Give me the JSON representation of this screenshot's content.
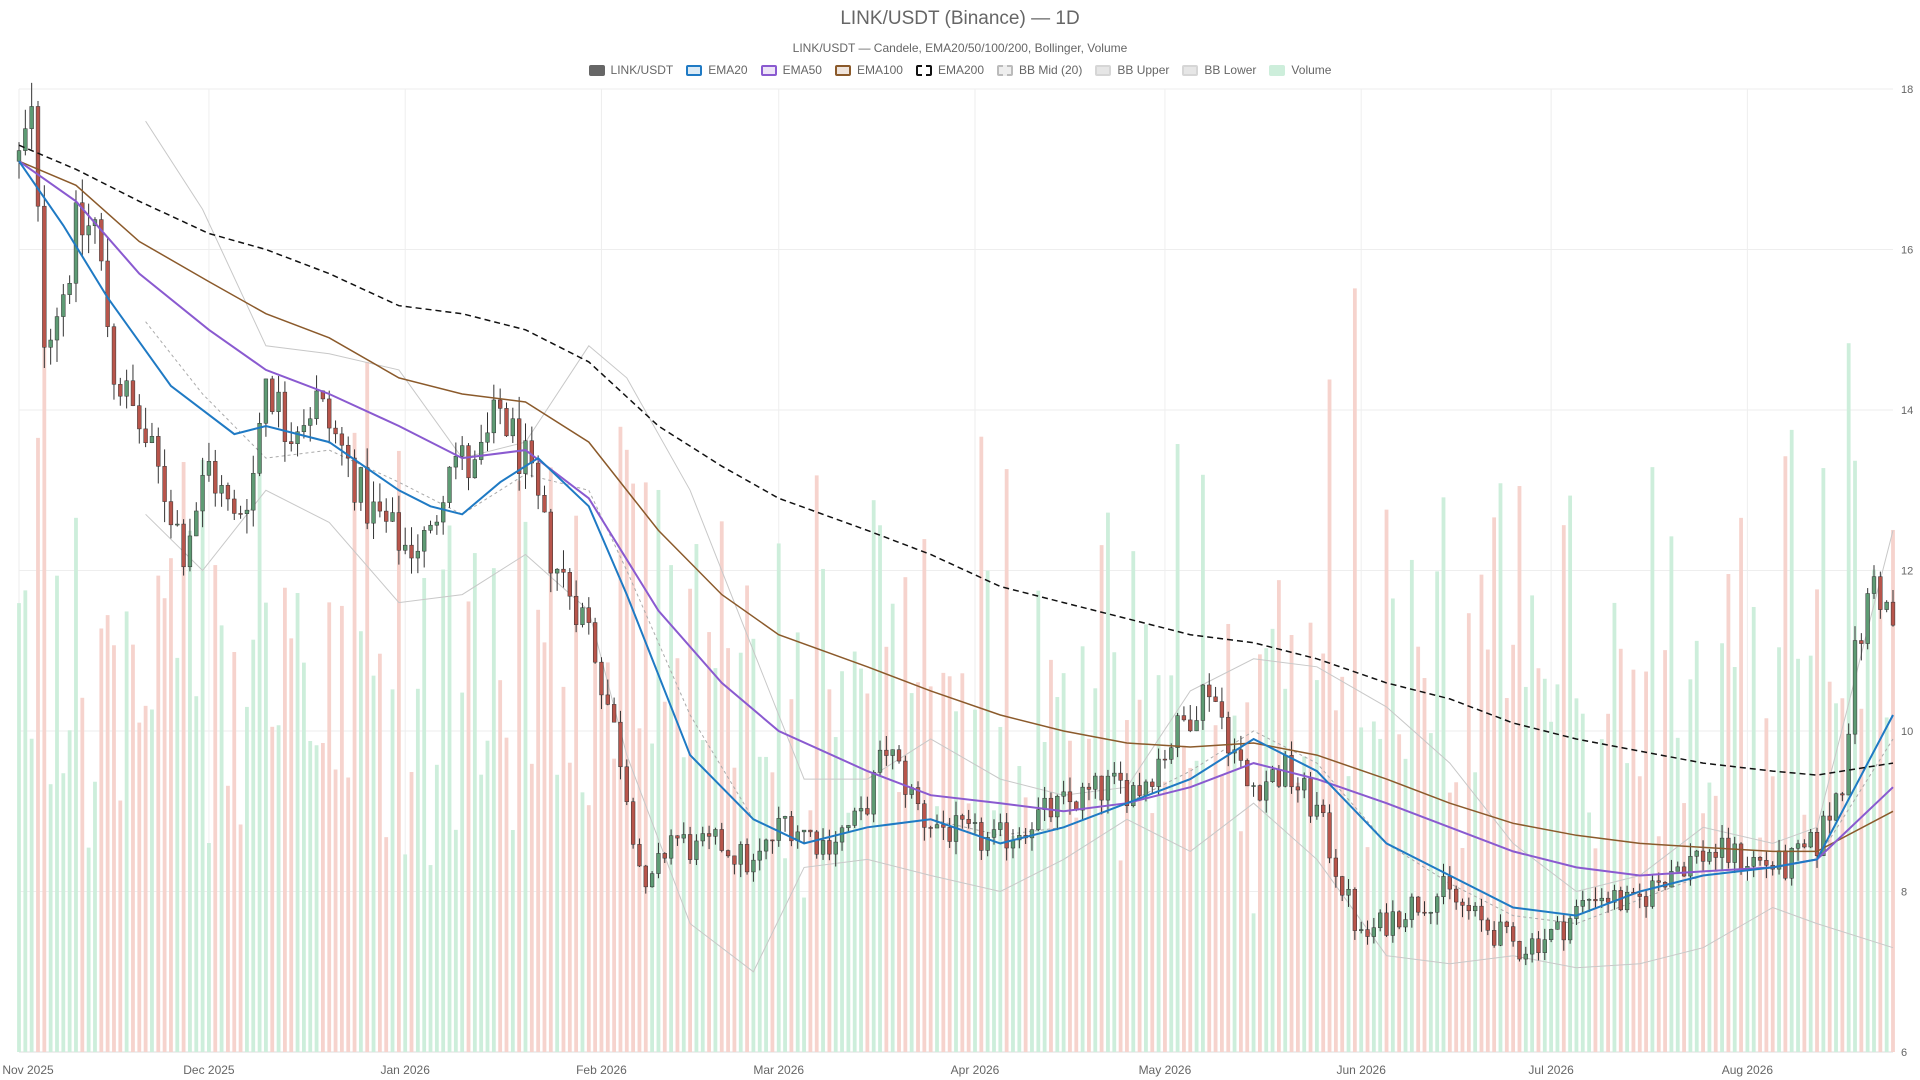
{
  "chart_data": {
    "type": "candlestick",
    "title": "LINK/USDT (Binance) — 1D",
    "subtitle": "LINK/USDT — Candele, EMA20/50/100/200, Bollinger, Volume",
    "legend": [
      {
        "name": "LINK/USDT",
        "fill": "#666666",
        "stroke": "#666666",
        "dash": false
      },
      {
        "name": "EMA20",
        "fill": "#dbeaf5",
        "stroke": "#1f7ac4",
        "dash": false
      },
      {
        "name": "EMA50",
        "fill": "#ede4f7",
        "stroke": "#8a5ad0",
        "dash": false
      },
      {
        "name": "EMA100",
        "fill": "#efe4dc",
        "stroke": "#8b5a2b",
        "dash": false
      },
      {
        "name": "EMA200",
        "fill": "#ffffff",
        "stroke": "#111111",
        "dash": true
      },
      {
        "name": "BB Mid (20)",
        "fill": "#eeeeee",
        "stroke": "#bbbbbb",
        "dash": true
      },
      {
        "name": "BB Upper",
        "fill": "#e6e6e6",
        "stroke": "#d6d6d6",
        "dash": false
      },
      {
        "name": "BB Lower",
        "fill": "#e6e6e6",
        "stroke": "#d6d6d6",
        "dash": false
      },
      {
        "name": "Volume",
        "fill": "#cdeedb",
        "stroke": "#cdeedb",
        "dash": false
      }
    ],
    "x_ticks": [
      "Nov 2025",
      "Dec 2025",
      "Jan 2026",
      "Feb 2026",
      "Mar 2026",
      "Apr 2026",
      "May 2026",
      "Jun 2026",
      "Jul 2026",
      "Aug 2026"
    ],
    "x_range": [
      "2025-11-01",
      "2026-08-24"
    ],
    "y_ticks": [
      6,
      8,
      10,
      12,
      14,
      16,
      18
    ],
    "ylim": [
      6,
      18
    ],
    "y_axis_position": "right",
    "grid": true,
    "legend_position": "top",
    "colors": {
      "up": "#5e9b74",
      "down": "#b8554b",
      "up_volume": "#cdeedb",
      "down_volume": "#f6d3cd",
      "ema20": "#1f7ac4",
      "ema50": "#8a5ad0",
      "ema100": "#8b5a2b",
      "ema200": "#111111",
      "bb_mid": "#aaaaaa",
      "bb_band": "#c8c8c8",
      "grid": "#eeeeee"
    },
    "series_anchors": {
      "price_close": [
        [
          "2025-11-01",
          17.1
        ],
        [
          "2025-11-03",
          17.6
        ],
        [
          "2025-11-05",
          15.0
        ],
        [
          "2025-11-08",
          15.5
        ],
        [
          "2025-11-10",
          16.2
        ],
        [
          "2025-11-13",
          16.3
        ],
        [
          "2025-11-16",
          14.5
        ],
        [
          "2025-11-20",
          13.8
        ],
        [
          "2025-11-24",
          13.0
        ],
        [
          "2025-11-27",
          12.3
        ],
        [
          "2025-12-01",
          13.3
        ],
        [
          "2025-12-05",
          12.6
        ],
        [
          "2025-12-08",
          13.2
        ],
        [
          "2025-12-10",
          14.5
        ],
        [
          "2025-12-13",
          13.8
        ],
        [
          "2025-12-18",
          14.1
        ],
        [
          "2025-12-22",
          13.5
        ],
        [
          "2025-12-26",
          12.8
        ],
        [
          "2026-01-01",
          12.3
        ],
        [
          "2026-01-05",
          12.4
        ],
        [
          "2026-01-08",
          13.5
        ],
        [
          "2026-01-12",
          13.2
        ],
        [
          "2026-01-16",
          14.0
        ],
        [
          "2026-01-20",
          13.3
        ],
        [
          "2026-01-24",
          12.2
        ],
        [
          "2026-01-30",
          11.3
        ],
        [
          "2026-02-04",
          9.7
        ],
        [
          "2026-02-08",
          7.9
        ],
        [
          "2026-02-12",
          8.7
        ],
        [
          "2026-02-16",
          8.5
        ],
        [
          "2026-02-20",
          8.6
        ],
        [
          "2026-02-25",
          8.3
        ],
        [
          "2026-03-02",
          8.9
        ],
        [
          "2026-03-08",
          8.6
        ],
        [
          "2026-03-14",
          8.9
        ],
        [
          "2026-03-18",
          9.8
        ],
        [
          "2026-03-24",
          8.9
        ],
        [
          "2026-03-30",
          8.7
        ],
        [
          "2026-04-04",
          8.6
        ],
        [
          "2026-04-10",
          8.9
        ],
        [
          "2026-04-16",
          9.1
        ],
        [
          "2026-04-22",
          9.3
        ],
        [
          "2026-04-27",
          9.3
        ],
        [
          "2026-05-03",
          10.0
        ],
        [
          "2026-05-08",
          10.6
        ],
        [
          "2026-05-14",
          9.3
        ],
        [
          "2026-05-20",
          9.5
        ],
        [
          "2026-05-25",
          9.0
        ],
        [
          "2026-06-01",
          7.4
        ],
        [
          "2026-06-08",
          7.8
        ],
        [
          "2026-06-14",
          8.0
        ],
        [
          "2026-06-20",
          7.6
        ],
        [
          "2026-06-26",
          7.3
        ],
        [
          "2026-07-02",
          7.5
        ],
        [
          "2026-07-08",
          8.0
        ],
        [
          "2026-07-14",
          7.8
        ],
        [
          "2026-07-20",
          8.3
        ],
        [
          "2026-07-26",
          8.5
        ],
        [
          "2026-08-01",
          8.4
        ],
        [
          "2026-08-07",
          8.3
        ],
        [
          "2026-08-12",
          8.6
        ],
        [
          "2026-08-16",
          9.4
        ],
        [
          "2026-08-18",
          10.9
        ],
        [
          "2026-08-21",
          11.9
        ],
        [
          "2026-08-24",
          11.3
        ]
      ],
      "ema20": [
        [
          "2025-11-01",
          17.1
        ],
        [
          "2025-11-08",
          16.3
        ],
        [
          "2025-11-15",
          15.4
        ],
        [
          "2025-11-25",
          14.3
        ],
        [
          "2025-12-05",
          13.7
        ],
        [
          "2025-12-10",
          13.8
        ],
        [
          "2025-12-20",
          13.6
        ],
        [
          "2025-12-31",
          13.0
        ],
        [
          "2026-01-05",
          12.8
        ],
        [
          "2026-01-10",
          12.7
        ],
        [
          "2026-01-16",
          13.1
        ],
        [
          "2026-01-22",
          13.4
        ],
        [
          "2026-01-30",
          12.8
        ],
        [
          "2026-02-05",
          11.7
        ],
        [
          "2026-02-15",
          9.7
        ],
        [
          "2026-02-25",
          8.9
        ],
        [
          "2026-03-05",
          8.6
        ],
        [
          "2026-03-15",
          8.8
        ],
        [
          "2026-03-25",
          8.9
        ],
        [
          "2026-04-05",
          8.6
        ],
        [
          "2026-04-15",
          8.8
        ],
        [
          "2026-04-25",
          9.1
        ],
        [
          "2026-05-05",
          9.4
        ],
        [
          "2026-05-15",
          9.9
        ],
        [
          "2026-05-25",
          9.5
        ],
        [
          "2026-06-05",
          8.6
        ],
        [
          "2026-06-15",
          8.2
        ],
        [
          "2026-06-25",
          7.8
        ],
        [
          "2026-07-05",
          7.7
        ],
        [
          "2026-07-15",
          8.0
        ],
        [
          "2026-07-25",
          8.2
        ],
        [
          "2026-08-05",
          8.3
        ],
        [
          "2026-08-12",
          8.4
        ],
        [
          "2026-08-24",
          10.2
        ]
      ],
      "ema50": [
        [
          "2025-11-01",
          17.1
        ],
        [
          "2025-11-10",
          16.6
        ],
        [
          "2025-11-20",
          15.7
        ],
        [
          "2025-12-01",
          15.0
        ],
        [
          "2025-12-10",
          14.5
        ],
        [
          "2025-12-20",
          14.2
        ],
        [
          "2025-12-31",
          13.8
        ],
        [
          "2026-01-10",
          13.4
        ],
        [
          "2026-01-20",
          13.5
        ],
        [
          "2026-01-30",
          12.9
        ],
        [
          "2026-02-10",
          11.5
        ],
        [
          "2026-02-20",
          10.6
        ],
        [
          "2026-03-01",
          10.0
        ],
        [
          "2026-03-15",
          9.5
        ],
        [
          "2026-03-25",
          9.2
        ],
        [
          "2026-04-05",
          9.1
        ],
        [
          "2026-04-15",
          9.0
        ],
        [
          "2026-04-25",
          9.1
        ],
        [
          "2026-05-05",
          9.3
        ],
        [
          "2026-05-15",
          9.6
        ],
        [
          "2026-05-25",
          9.4
        ],
        [
          "2026-06-05",
          9.1
        ],
        [
          "2026-06-15",
          8.8
        ],
        [
          "2026-06-25",
          8.5
        ],
        [
          "2026-07-05",
          8.3
        ],
        [
          "2026-07-15",
          8.2
        ],
        [
          "2026-07-25",
          8.25
        ],
        [
          "2026-08-05",
          8.3
        ],
        [
          "2026-08-12",
          8.4
        ],
        [
          "2026-08-24",
          9.3
        ]
      ],
      "ema100": [
        [
          "2025-11-01",
          17.1
        ],
        [
          "2025-11-10",
          16.8
        ],
        [
          "2025-11-20",
          16.1
        ],
        [
          "2025-12-01",
          15.6
        ],
        [
          "2025-12-10",
          15.2
        ],
        [
          "2025-12-20",
          14.9
        ],
        [
          "2025-12-31",
          14.4
        ],
        [
          "2026-01-10",
          14.2
        ],
        [
          "2026-01-20",
          14.1
        ],
        [
          "2026-01-30",
          13.6
        ],
        [
          "2026-02-10",
          12.5
        ],
        [
          "2026-02-20",
          11.7
        ],
        [
          "2026-03-01",
          11.2
        ],
        [
          "2026-03-15",
          10.8
        ],
        [
          "2026-03-25",
          10.5
        ],
        [
          "2026-04-05",
          10.2
        ],
        [
          "2026-04-15",
          10.0
        ],
        [
          "2026-04-25",
          9.85
        ],
        [
          "2026-05-05",
          9.8
        ],
        [
          "2026-05-15",
          9.85
        ],
        [
          "2026-05-25",
          9.7
        ],
        [
          "2026-06-05",
          9.4
        ],
        [
          "2026-06-15",
          9.1
        ],
        [
          "2026-06-25",
          8.85
        ],
        [
          "2026-07-05",
          8.7
        ],
        [
          "2026-07-15",
          8.6
        ],
        [
          "2026-07-25",
          8.55
        ],
        [
          "2026-08-05",
          8.5
        ],
        [
          "2026-08-12",
          8.5
        ],
        [
          "2026-08-24",
          9.0
        ]
      ],
      "ema200": [
        [
          "2025-11-01",
          17.3
        ],
        [
          "2025-11-10",
          17.0
        ],
        [
          "2025-11-20",
          16.6
        ],
        [
          "2025-12-01",
          16.2
        ],
        [
          "2025-12-10",
          16.0
        ],
        [
          "2025-12-20",
          15.7
        ],
        [
          "2025-12-31",
          15.3
        ],
        [
          "2026-01-10",
          15.2
        ],
        [
          "2026-01-20",
          15.0
        ],
        [
          "2026-01-30",
          14.6
        ],
        [
          "2026-02-10",
          13.8
        ],
        [
          "2026-02-20",
          13.3
        ],
        [
          "2026-03-01",
          12.9
        ],
        [
          "2026-03-15",
          12.5
        ],
        [
          "2026-03-25",
          12.2
        ],
        [
          "2026-04-05",
          11.8
        ],
        [
          "2026-04-15",
          11.6
        ],
        [
          "2026-04-25",
          11.4
        ],
        [
          "2026-05-05",
          11.2
        ],
        [
          "2026-05-15",
          11.1
        ],
        [
          "2026-05-25",
          10.9
        ],
        [
          "2026-06-05",
          10.6
        ],
        [
          "2026-06-15",
          10.4
        ],
        [
          "2026-06-25",
          10.1
        ],
        [
          "2026-07-05",
          9.9
        ],
        [
          "2026-07-15",
          9.75
        ],
        [
          "2026-07-25",
          9.6
        ],
        [
          "2026-08-05",
          9.5
        ],
        [
          "2026-08-12",
          9.45
        ],
        [
          "2026-08-24",
          9.6
        ]
      ],
      "bb_upper": [
        [
          "2025-11-21",
          17.6
        ],
        [
          "2025-11-30",
          16.5
        ],
        [
          "2025-12-10",
          14.8
        ],
        [
          "2025-12-20",
          14.7
        ],
        [
          "2025-12-31",
          14.5
        ],
        [
          "2026-01-10",
          13.4
        ],
        [
          "2026-01-20",
          13.6
        ],
        [
          "2026-01-30",
          14.8
        ],
        [
          "2026-02-05",
          14.4
        ],
        [
          "2026-02-15",
          13.0
        ],
        [
          "2026-02-25",
          11.0
        ],
        [
          "2026-03-05",
          9.4
        ],
        [
          "2026-03-15",
          9.4
        ],
        [
          "2026-03-25",
          9.9
        ],
        [
          "2026-04-05",
          9.4
        ],
        [
          "2026-04-15",
          9.2
        ],
        [
          "2026-04-25",
          9.3
        ],
        [
          "2026-05-05",
          10.5
        ],
        [
          "2026-05-15",
          10.9
        ],
        [
          "2026-05-25",
          10.8
        ],
        [
          "2026-06-05",
          10.3
        ],
        [
          "2026-06-15",
          9.6
        ],
        [
          "2026-06-25",
          8.6
        ],
        [
          "2026-07-05",
          8.0
        ],
        [
          "2026-07-15",
          8.2
        ],
        [
          "2026-07-25",
          8.8
        ],
        [
          "2026-08-05",
          8.6
        ],
        [
          "2026-08-12",
          8.8
        ],
        [
          "2026-08-24",
          12.5
        ]
      ],
      "bb_mid": [
        [
          "2025-11-21",
          15.1
        ],
        [
          "2025-11-30",
          14.2
        ],
        [
          "2025-12-10",
          13.4
        ],
        [
          "2025-12-20",
          13.5
        ],
        [
          "2025-12-31",
          13.1
        ],
        [
          "2026-01-10",
          12.7
        ],
        [
          "2026-01-20",
          13.2
        ],
        [
          "2026-01-30",
          13.0
        ],
        [
          "2026-02-05",
          12.0
        ],
        [
          "2026-02-15",
          10.2
        ],
        [
          "2026-02-25",
          8.9
        ],
        [
          "2026-03-05",
          8.6
        ],
        [
          "2026-03-15",
          8.8
        ],
        [
          "2026-03-25",
          8.9
        ],
        [
          "2026-04-05",
          8.7
        ],
        [
          "2026-04-15",
          8.8
        ],
        [
          "2026-04-25",
          9.1
        ],
        [
          "2026-05-05",
          9.5
        ],
        [
          "2026-05-15",
          10.0
        ],
        [
          "2026-05-25",
          9.6
        ],
        [
          "2026-06-05",
          8.6
        ],
        [
          "2026-06-15",
          8.1
        ],
        [
          "2026-06-25",
          7.7
        ],
        [
          "2026-07-05",
          7.6
        ],
        [
          "2026-07-15",
          7.9
        ],
        [
          "2026-07-25",
          8.2
        ],
        [
          "2026-08-05",
          8.3
        ],
        [
          "2026-08-12",
          8.4
        ],
        [
          "2026-08-24",
          9.9
        ]
      ],
      "bb_lower": [
        [
          "2025-11-21",
          12.7
        ],
        [
          "2025-11-30",
          12.0
        ],
        [
          "2025-12-10",
          13.0
        ],
        [
          "2025-12-20",
          12.6
        ],
        [
          "2025-12-31",
          11.6
        ],
        [
          "2026-01-10",
          11.7
        ],
        [
          "2026-01-20",
          12.2
        ],
        [
          "2026-01-30",
          11.5
        ],
        [
          "2026-02-05",
          9.7
        ],
        [
          "2026-02-15",
          7.6
        ],
        [
          "2026-02-25",
          7.0
        ],
        [
          "2026-03-05",
          8.3
        ],
        [
          "2026-03-15",
          8.4
        ],
        [
          "2026-03-25",
          8.2
        ],
        [
          "2026-04-05",
          8.0
        ],
        [
          "2026-04-15",
          8.4
        ],
        [
          "2026-04-25",
          8.9
        ],
        [
          "2026-05-05",
          8.5
        ],
        [
          "2026-05-15",
          9.1
        ],
        [
          "2026-05-25",
          8.4
        ],
        [
          "2026-06-05",
          7.2
        ],
        [
          "2026-06-15",
          7.1
        ],
        [
          "2026-06-25",
          7.2
        ],
        [
          "2026-07-05",
          7.05
        ],
        [
          "2026-07-15",
          7.1
        ],
        [
          "2026-07-25",
          7.3
        ],
        [
          "2026-08-05",
          7.8
        ],
        [
          "2026-08-12",
          7.6
        ],
        [
          "2026-08-24",
          7.3
        ]
      ]
    }
  }
}
